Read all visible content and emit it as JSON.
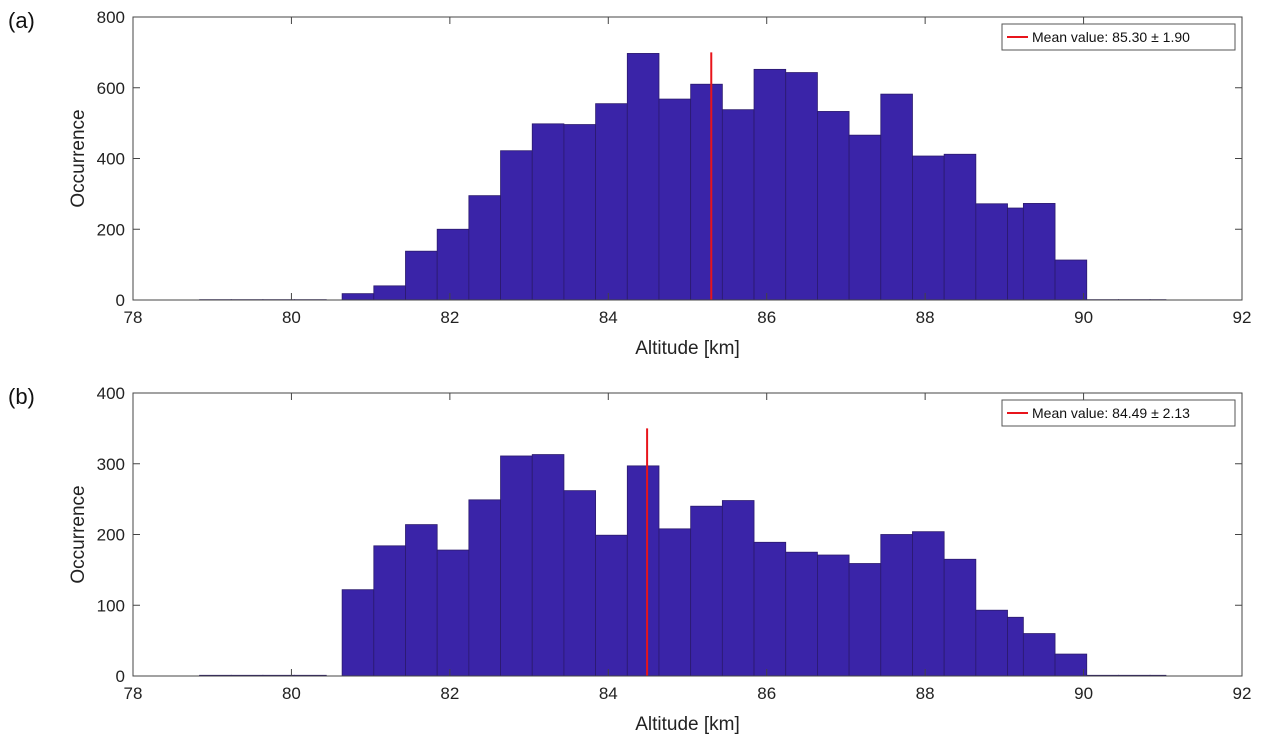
{
  "colors": {
    "bar": "#3a24a8",
    "bar_edge": "#2b1a6e",
    "mean_line": "#e8141b",
    "axis": "#444444"
  },
  "chart_data": [
    {
      "panel_label": "(a)",
      "type": "bar",
      "xlabel": "Altitude [km]",
      "ylabel": "Occurrence",
      "xlim": [
        78,
        92
      ],
      "ylim": [
        0,
        800
      ],
      "xticks": [
        78,
        80,
        82,
        84,
        86,
        88,
        90,
        92
      ],
      "yticks": [
        0,
        200,
        400,
        600,
        800
      ],
      "grid": false,
      "legend_placement": "top-right",
      "legend_label": "Mean value: 85.30 ± 1.90",
      "mean": 85.3,
      "mean_line_top": 700,
      "bin_edges": [
        78.84,
        79.24,
        79.64,
        80.04,
        80.44,
        80.64,
        81.04,
        81.44,
        81.84,
        82.24,
        82.64,
        83.04,
        83.44,
        83.84,
        84.24,
        84.64,
        85.04,
        85.44,
        85.84,
        86.24,
        86.64,
        87.04,
        87.44,
        87.84,
        88.24,
        88.64,
        89.04,
        89.24,
        89.64,
        90.04,
        90.44,
        90.84,
        91.04
      ],
      "values": [
        1,
        1,
        1,
        1,
        0,
        18,
        40,
        138,
        200,
        295,
        422,
        498,
        496,
        555,
        697,
        568,
        610,
        538,
        652,
        643,
        533,
        466,
        582,
        407,
        412,
        272,
        260,
        273,
        113,
        1,
        1,
        1,
        1
      ]
    },
    {
      "panel_label": "(b)",
      "type": "bar",
      "xlabel": "Altitude [km]",
      "ylabel": "Occurrence",
      "xlim": [
        78,
        92
      ],
      "ylim": [
        0,
        400
      ],
      "xticks": [
        78,
        80,
        82,
        84,
        86,
        88,
        90,
        92
      ],
      "yticks": [
        0,
        100,
        200,
        300,
        400
      ],
      "grid": false,
      "legend_placement": "top-right",
      "legend_label": "Mean value: 84.49 ± 2.13",
      "mean": 84.49,
      "mean_line_top": 350,
      "bin_edges": [
        78.84,
        79.24,
        79.64,
        80.04,
        80.44,
        80.64,
        81.04,
        81.44,
        81.84,
        82.24,
        82.64,
        83.04,
        83.44,
        83.84,
        84.24,
        84.64,
        85.04,
        85.44,
        85.84,
        86.24,
        86.64,
        87.04,
        87.44,
        87.84,
        88.24,
        88.64,
        89.04,
        89.24,
        89.64,
        90.04,
        90.44,
        90.84,
        91.04
      ],
      "values": [
        1,
        1,
        1,
        1,
        0,
        122,
        184,
        214,
        178,
        249,
        311,
        313,
        262,
        199,
        297,
        208,
        240,
        248,
        189,
        175,
        171,
        159,
        200,
        204,
        165,
        93,
        83,
        60,
        31,
        1,
        1,
        1,
        1
      ]
    }
  ]
}
